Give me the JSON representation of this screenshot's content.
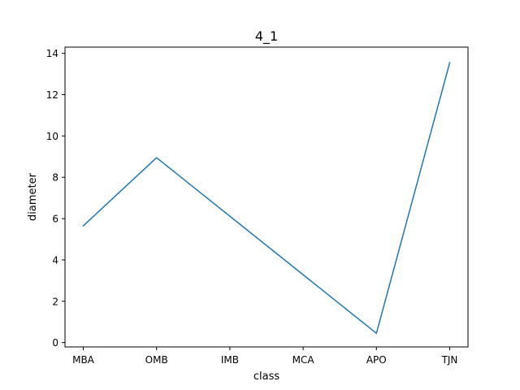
{
  "chart_data": {
    "type": "line",
    "title": "4_1",
    "xlabel": "class",
    "ylabel": "diameter",
    "categories": [
      "MBA",
      "OMB",
      "IMB",
      "MCA",
      "APO",
      "TJN"
    ],
    "series": [
      {
        "values": [
          5.65,
          8.95,
          null,
          null,
          0.45,
          13.55
        ]
      }
    ],
    "yticks": [
      0,
      2,
      4,
      6,
      8,
      10,
      12,
      14
    ],
    "ytick_labels": [
      "0",
      "2",
      "4",
      "6",
      "8",
      "10",
      "12",
      "14"
    ],
    "ylim": [
      -0.2114,
      14.3014
    ],
    "grid": false,
    "line_color": "#1f77b4"
  }
}
